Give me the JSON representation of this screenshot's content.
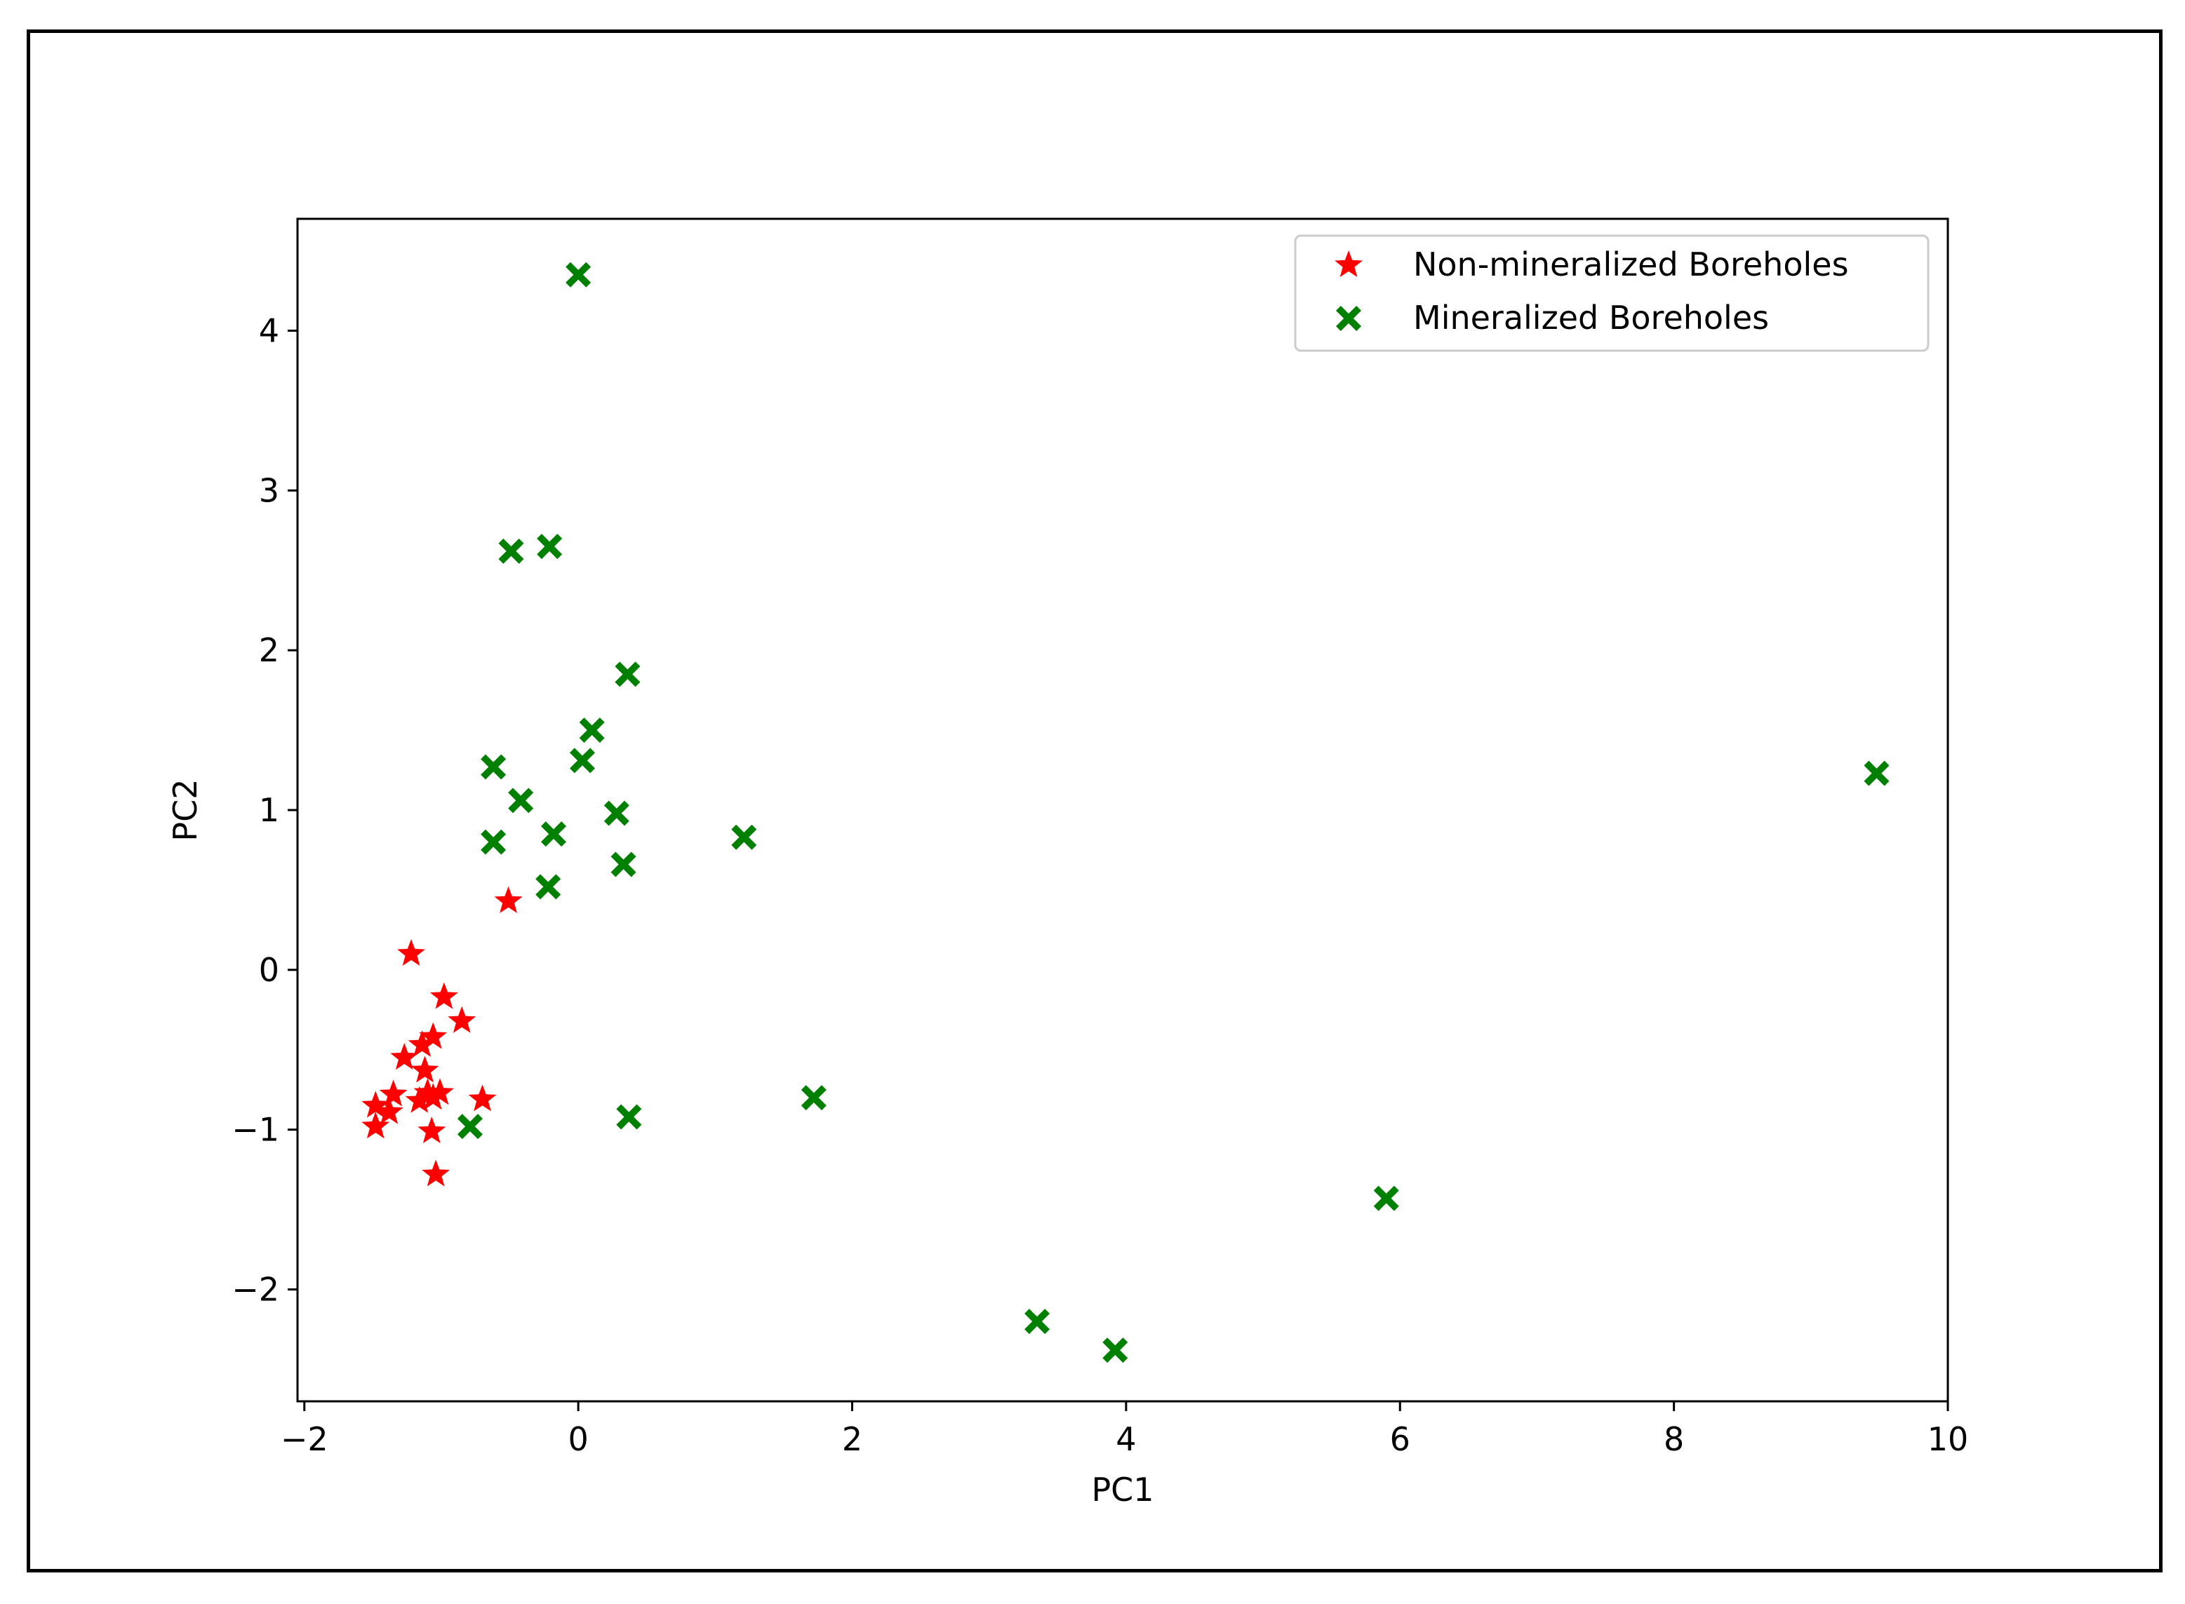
{
  "chart_data": {
    "type": "scatter",
    "title": "",
    "xlabel": "PC1",
    "ylabel": "PC2",
    "xlim": [
      -2.05,
      10.0
    ],
    "ylim": [
      -2.7,
      4.7
    ],
    "xticks": [
      -2,
      0,
      2,
      4,
      6,
      8,
      10
    ],
    "yticks": [
      -2,
      -1,
      0,
      1,
      2,
      3,
      4
    ],
    "xtick_labels": [
      "−2",
      "0",
      "2",
      "4",
      "6",
      "8",
      "10"
    ],
    "ytick_labels": [
      "−2",
      "−1",
      "0",
      "1",
      "2",
      "3",
      "4"
    ],
    "grid": false,
    "legend_position": "top-right",
    "series": [
      {
        "name": "Non-mineralized Boreholes",
        "marker": "star",
        "color": "#ff0000",
        "points": [
          [
            -0.51,
            0.43
          ],
          [
            -1.22,
            0.1
          ],
          [
            -0.98,
            -0.17
          ],
          [
            -0.85,
            -0.32
          ],
          [
            -1.06,
            -0.42
          ],
          [
            -1.14,
            -0.47
          ],
          [
            -1.27,
            -0.55
          ],
          [
            -1.12,
            -0.63
          ],
          [
            -1.35,
            -0.78
          ],
          [
            -1.1,
            -0.77
          ],
          [
            -1.01,
            -0.77
          ],
          [
            -0.7,
            -0.81
          ],
          [
            -1.06,
            -0.8
          ],
          [
            -1.16,
            -0.82
          ],
          [
            -1.48,
            -0.85
          ],
          [
            -1.38,
            -0.89
          ],
          [
            -1.48,
            -0.98
          ],
          [
            -1.07,
            -1.01
          ],
          [
            -1.04,
            -1.28
          ]
        ]
      },
      {
        "name": "Mineralized Boreholes",
        "marker": "x-filled",
        "color": "#008000",
        "points": [
          [
            0.0,
            4.35
          ],
          [
            -0.49,
            2.62
          ],
          [
            -0.21,
            2.65
          ],
          [
            0.36,
            1.85
          ],
          [
            0.1,
            1.5
          ],
          [
            0.03,
            1.31
          ],
          [
            -0.62,
            1.27
          ],
          [
            -0.42,
            1.06
          ],
          [
            0.28,
            0.98
          ],
          [
            -0.18,
            0.85
          ],
          [
            -0.62,
            0.8
          ],
          [
            1.21,
            0.83
          ],
          [
            0.33,
            0.66
          ],
          [
            -0.22,
            0.52
          ],
          [
            9.48,
            1.23
          ],
          [
            0.37,
            -0.92
          ],
          [
            -0.79,
            -0.98
          ],
          [
            1.72,
            -0.8
          ],
          [
            5.9,
            -1.43
          ],
          [
            3.35,
            -2.2
          ],
          [
            3.92,
            -2.38
          ]
        ]
      }
    ]
  }
}
